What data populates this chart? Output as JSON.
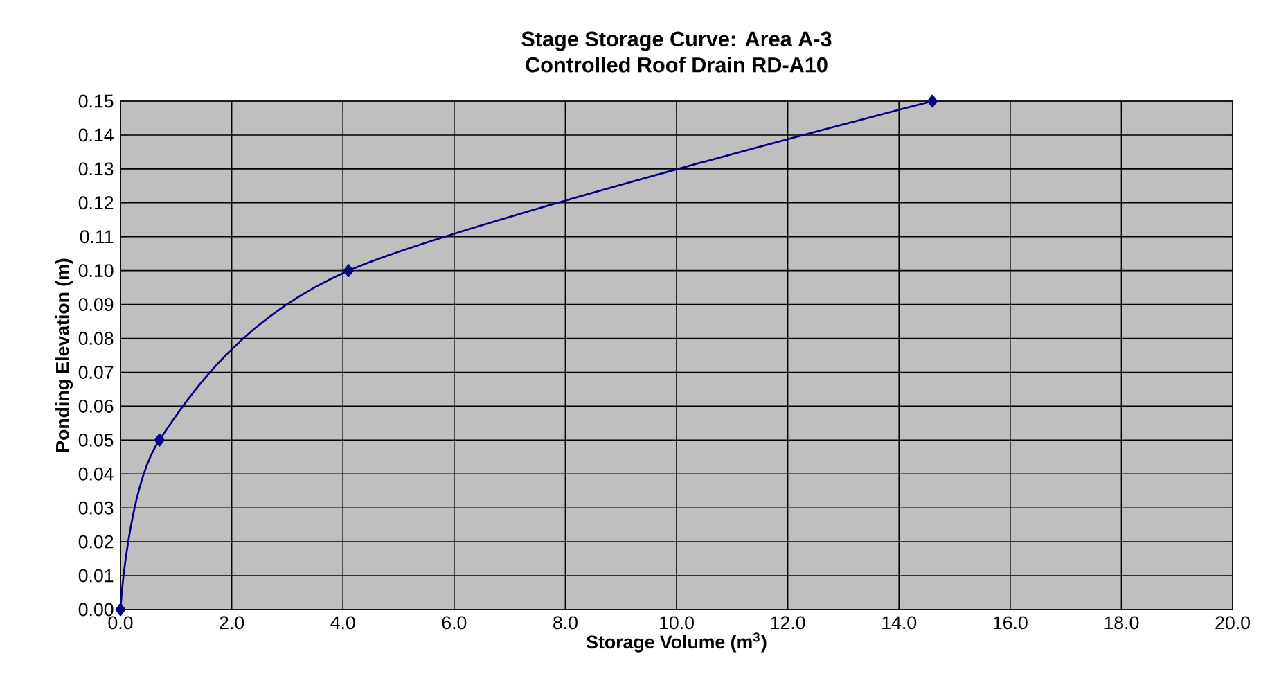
{
  "chart_data": {
    "type": "line",
    "title": "Stage Storage Curve: Area A-3",
    "subtitle": "Controlled Roof Drain RD-A10",
    "xlabel": "Storage Volume (m$^{3}$)",
    "ylabel": "Ponding Elevation (m)",
    "x": [
      0.0,
      0.7,
      4.1,
      14.6
    ],
    "series": [
      {
        "color": "#000080",
        "values": [
          0.0,
          0.05,
          0.1,
          0.15
        ]
      }
    ],
    "xlim": [
      0,
      20
    ],
    "ylim": [
      0,
      0.15
    ],
    "xticks": [
      {
        "value": 0,
        "label": "0.0"
      },
      {
        "value": 2,
        "label": "2.0"
      },
      {
        "value": 4,
        "label": "4.0"
      },
      {
        "value": 6,
        "label": "6.0"
      },
      {
        "value": 8,
        "label": "8.0"
      },
      {
        "value": 10,
        "label": "10.0"
      },
      {
        "value": 12,
        "label": "12.0"
      },
      {
        "value": 14,
        "label": "14.0"
      },
      {
        "value": 16,
        "label": "16.0"
      },
      {
        "value": 18,
        "label": "18.0"
      },
      {
        "value": 20,
        "label": "20.0"
      }
    ],
    "yticks": [
      {
        "value": 0,
        "label": "0.00"
      },
      {
        "value": 0.01,
        "label": "0.01"
      },
      {
        "value": 0.02,
        "label": "0.02"
      },
      {
        "value": 0.03,
        "label": "0.03"
      },
      {
        "value": 0.04,
        "label": "0.04"
      },
      {
        "value": 0.05,
        "label": "0.05"
      },
      {
        "value": 0.06,
        "label": "0.06"
      },
      {
        "value": 0.07,
        "label": "0.07"
      },
      {
        "value": 0.08,
        "label": "0.08"
      },
      {
        "value": 0.09,
        "label": "0.09"
      },
      {
        "value": 0.1,
        "label": "0.10"
      },
      {
        "value": 0.11,
        "label": "0.11"
      },
      {
        "value": 0.12,
        "label": "0.12"
      },
      {
        "value": 0.13,
        "label": "0.13"
      },
      {
        "value": 0.14,
        "label": "0.14"
      },
      {
        "value": 0.15,
        "label": "0.15"
      }
    ],
    "grid": true,
    "marker": "diamond",
    "line_style": "solid"
  }
}
